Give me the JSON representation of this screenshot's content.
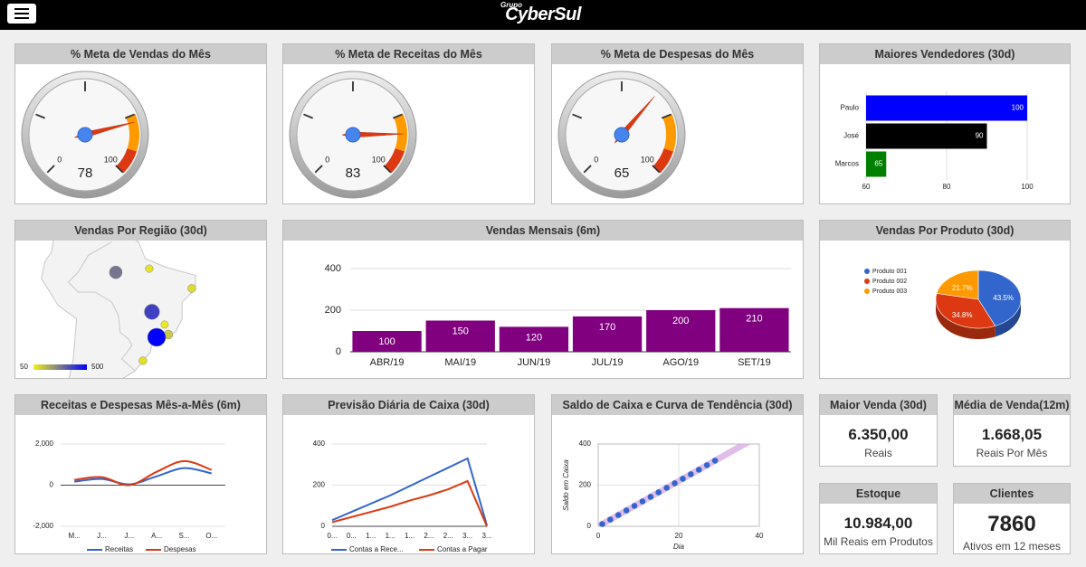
{
  "header": {
    "brand_small": "Grupo",
    "brand": "CyberSul"
  },
  "chart_data": [
    {
      "type": "gauge",
      "title": "% Meta de Vendas do Mês",
      "value": 78,
      "range": [
        0,
        100
      ],
      "ticks": [
        0,
        25,
        50,
        75,
        100
      ],
      "bands": [
        {
          "from": 75,
          "to": 90,
          "color": "#ff9900"
        },
        {
          "from": 90,
          "to": 100,
          "color": "#dc3912"
        }
      ]
    },
    {
      "type": "gauge",
      "title": "% Meta de Receitas do Mês",
      "value": 83,
      "range": [
        0,
        100
      ],
      "ticks": [
        0,
        25,
        50,
        75,
        100
      ],
      "bands": [
        {
          "from": 75,
          "to": 90,
          "color": "#ff9900"
        },
        {
          "from": 90,
          "to": 100,
          "color": "#dc3912"
        }
      ]
    },
    {
      "type": "gauge",
      "title": "% Meta de Despesas do Mês",
      "value": 65,
      "range": [
        0,
        100
      ],
      "ticks": [
        0,
        25,
        50,
        75,
        100
      ],
      "bands": [
        {
          "from": 75,
          "to": 90,
          "color": "#ff9900"
        },
        {
          "from": 90,
          "to": 100,
          "color": "#dc3912"
        }
      ]
    },
    {
      "type": "bar",
      "horizontal": true,
      "title": "Maiores Vendedores (30d)",
      "categories": [
        "Paulo",
        "José",
        "Marcos"
      ],
      "values": [
        100,
        90,
        65
      ],
      "colors": [
        "#0000ff",
        "#000000",
        "#008000"
      ],
      "xlim": [
        60,
        100
      ],
      "xticks": [
        60,
        80,
        100
      ],
      "grid": true
    },
    {
      "type": "geo",
      "title": "Vendas Por Região (30d)",
      "colorlim": [
        50,
        500
      ],
      "colors": [
        "#f2ef1a",
        "#0000ff"
      ],
      "points": [
        {
          "lon": -58.8,
          "lat": -4.1,
          "value": 280
        },
        {
          "lon": -48.8,
          "lat": -3.0,
          "value": 70
        },
        {
          "lon": -36.1,
          "lat": -8.9,
          "value": 90
        },
        {
          "lon": -48.0,
          "lat": -15.9,
          "value": 380
        },
        {
          "lon": -44.2,
          "lat": -19.7,
          "value": 60
        },
        {
          "lon": -43.1,
          "lat": -22.7,
          "value": 120
        },
        {
          "lon": -46.6,
          "lat": -23.5,
          "value": 500
        },
        {
          "lon": -50.7,
          "lat": -30.5,
          "value": 80
        }
      ]
    },
    {
      "type": "bar",
      "title": "Vendas Mensais (6m)",
      "categories": [
        "ABR/19",
        "MAI/19",
        "JUN/19",
        "JUL/19",
        "AGO/19",
        "SET/19"
      ],
      "values": [
        100,
        150,
        120,
        170,
        200,
        210
      ],
      "color": "#800080",
      "ylim": [
        0,
        400
      ],
      "yticks": [
        0,
        200,
        400
      ],
      "grid": true
    },
    {
      "type": "pie",
      "title": "Vendas Por Produto (30d)",
      "3d": true,
      "categories": [
        "Produto 001",
        "Produto 002",
        "Produto 003"
      ],
      "values": [
        43.5,
        34.8,
        21.7
      ],
      "value_labels": [
        "43.5%",
        "34.8%",
        "21.7%"
      ],
      "colors": [
        "#3366cc",
        "#dc3912",
        "#ff9900"
      ]
    },
    {
      "type": "line",
      "title": "Receitas e Despesas Mês-a-Mês (6m)",
      "curve": "smooth",
      "categories": [
        "M...",
        "J...",
        "J...",
        "A...",
        "S...",
        "O..."
      ],
      "series": [
        {
          "name": "Receitas",
          "color": "#3366cc",
          "values": [
            170,
            300,
            40,
            430,
            830,
            570
          ]
        },
        {
          "name": "Despesas",
          "color": "#dc3912",
          "values": [
            260,
            390,
            0,
            650,
            1170,
            740
          ]
        }
      ],
      "ylim": [
        -2000,
        2000
      ],
      "yticks": [
        {
          "value": -2000,
          "label": "-2,000"
        },
        0,
        {
          "value": 2000,
          "label": "2,000"
        }
      ],
      "grid": true
    },
    {
      "type": "line",
      "title": "Previsão Diária de Caixa (30d)",
      "categories": [
        "0...",
        "0...",
        "1...",
        "1...",
        "1...",
        "2...",
        "2...",
        "3...",
        "3..."
      ],
      "series": [
        {
          "name": "Contas a Rece...",
          "color": "#3366cc",
          "values": [
            30,
            70,
            110,
            150,
            195,
            240,
            285,
            330,
            5
          ]
        },
        {
          "name": "Contas a Pagar",
          "color": "#dc3912",
          "values": [
            20,
            45,
            70,
            95,
            125,
            150,
            180,
            220,
            0
          ]
        }
      ],
      "ylim": [
        0,
        400
      ],
      "yticks": [
        0,
        200,
        400
      ],
      "grid": true
    },
    {
      "type": "scatter",
      "title": "Saldo de Caixa e Curva de Tendência (30d)",
      "x": [
        1,
        3,
        5,
        7,
        9,
        11,
        13,
        15,
        17,
        19,
        21,
        23,
        25,
        27,
        29
      ],
      "values": [
        11,
        33,
        55,
        77,
        99,
        121,
        143,
        165,
        187,
        209,
        231,
        253,
        275,
        297,
        319
      ],
      "color": "#3366cc",
      "trendline": "linear",
      "trendline_color": "#dcb2e6",
      "xlim": [
        0,
        40
      ],
      "xticks": [
        0,
        20,
        40
      ],
      "ylim": [
        0,
        400
      ],
      "yticks": [
        0,
        200,
        400
      ],
      "xlabel": "Dia",
      "ylabel": "Saldo em Caixa",
      "grid": true
    }
  ],
  "kpis": [
    {
      "title": "Maior Venda (30d)",
      "value": "6.350,00",
      "caption": "Reais"
    },
    {
      "title": "Média de Venda(12m)",
      "value": "1.668,05",
      "caption": "Reais Por Mês"
    },
    {
      "title": "Estoque",
      "value": "10.984,00",
      "caption": "Mil Reais em Produtos"
    },
    {
      "title": "Clientes",
      "value": "7860",
      "caption": "Ativos em 12 meses"
    }
  ]
}
